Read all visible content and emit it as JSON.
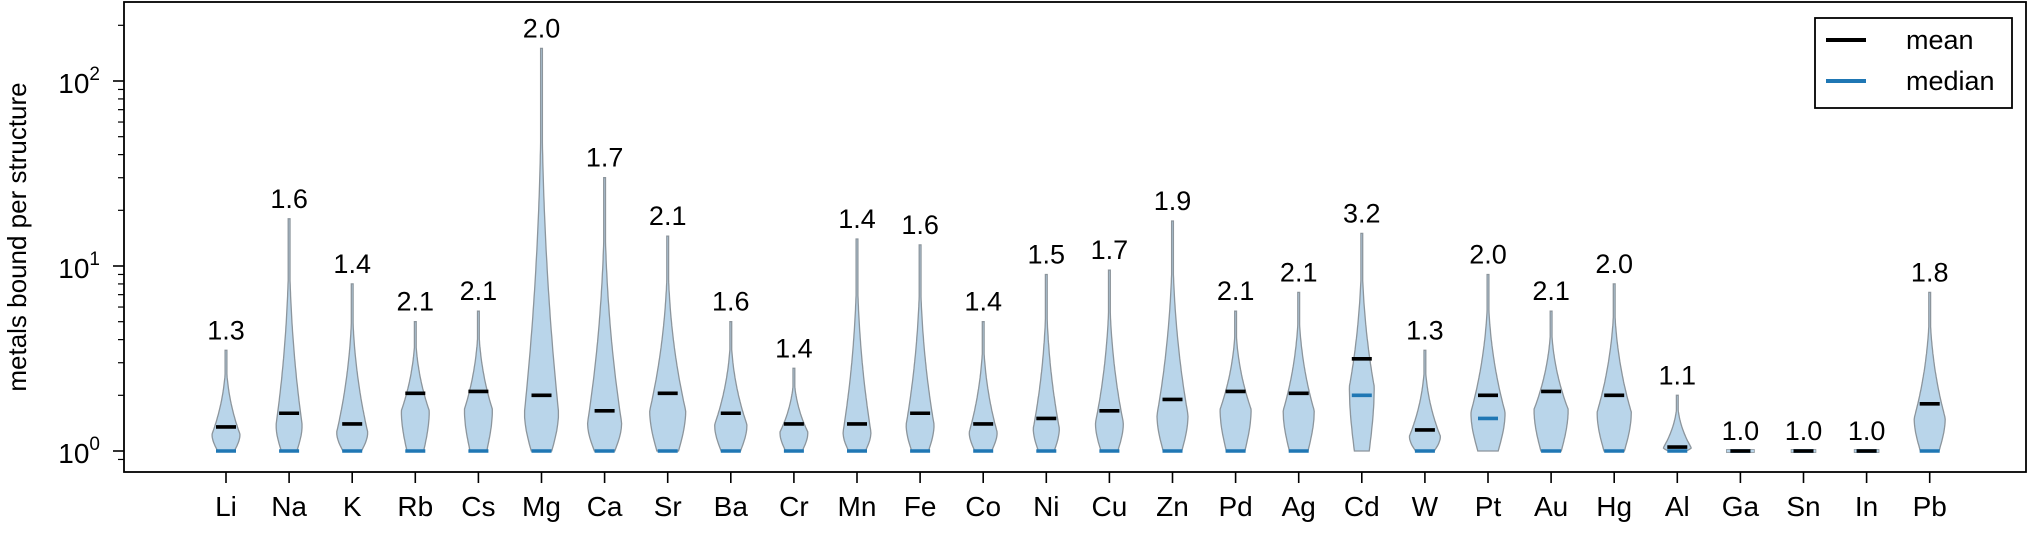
{
  "chart_data": {
    "type": "violin",
    "y_scale": "log",
    "ylim": [
      0.85,
      300
    ],
    "ylabel": "metals bound per structure",
    "y_ticks": [
      {
        "value": 1,
        "base": "10",
        "exp": "0"
      },
      {
        "value": 10,
        "base": "10",
        "exp": "1"
      },
      {
        "value": 100,
        "base": "10",
        "exp": "2"
      }
    ],
    "legend": {
      "position": "top-right",
      "entries": [
        {
          "label": "mean",
          "color": "#000000"
        },
        {
          "label": "median",
          "color": "#1f77b4"
        }
      ]
    },
    "colors": {
      "violin_fill": "#b9d5ea",
      "violin_edge": "#8c959c",
      "mean": "#000000",
      "median": "#1f77b4"
    },
    "categories": [
      "Li",
      "Na",
      "K",
      "Rb",
      "Cs",
      "Mg",
      "Ca",
      "Sr",
      "Ba",
      "Cr",
      "Mn",
      "Fe",
      "Co",
      "Ni",
      "Cu",
      "Zn",
      "Pd",
      "Ag",
      "Cd",
      "W",
      "Pt",
      "Au",
      "Hg",
      "Al",
      "Ga",
      "Sn",
      "In",
      "Pb"
    ],
    "series": [
      {
        "name": "mean",
        "values": [
          1.35,
          1.6,
          1.4,
          2.05,
          2.1,
          2.0,
          1.65,
          2.05,
          1.6,
          1.4,
          1.4,
          1.6,
          1.4,
          1.5,
          1.65,
          1.9,
          2.1,
          2.05,
          3.15,
          1.3,
          2.0,
          2.1,
          2.0,
          1.05,
          1.0,
          1.0,
          1.0,
          1.8
        ]
      },
      {
        "name": "median",
        "values": [
          1,
          1,
          1,
          1,
          1,
          1,
          1,
          1,
          1,
          1,
          1,
          1,
          1,
          1,
          1,
          1,
          1,
          1,
          2,
          1,
          1.5,
          1,
          1,
          1,
          1,
          1,
          1,
          1
        ]
      }
    ],
    "max": [
      3.5,
      18,
      8,
      5,
      5.7,
      150,
      30,
      14.5,
      5,
      2.8,
      14,
      13,
      5,
      9,
      9.5,
      17.5,
      5.7,
      7.2,
      15,
      3.5,
      9,
      5.7,
      8,
      2,
      1,
      1,
      1,
      7.2
    ],
    "annotations": [
      "1.3",
      "1.6",
      "1.4",
      "2.1",
      "2.1",
      "2.0",
      "1.7",
      "2.1",
      "1.6",
      "1.4",
      "1.4",
      "1.6",
      "1.4",
      "1.5",
      "1.7",
      "1.9",
      "2.1",
      "2.1",
      "3.2",
      "1.3",
      "2.0",
      "2.1",
      "2.0",
      "1.1",
      "1.0",
      "1.0",
      "1.0",
      "1.8"
    ],
    "max_width": [
      0.45,
      0.42,
      0.5,
      0.45,
      0.45,
      0.55,
      0.55,
      0.58,
      0.52,
      0.45,
      0.45,
      0.45,
      0.45,
      0.42,
      0.45,
      0.5,
      0.5,
      0.5,
      0.4,
      0.5,
      0.55,
      0.55,
      0.55,
      0.45,
      0.45,
      0.4,
      0.4,
      0.5
    ]
  }
}
